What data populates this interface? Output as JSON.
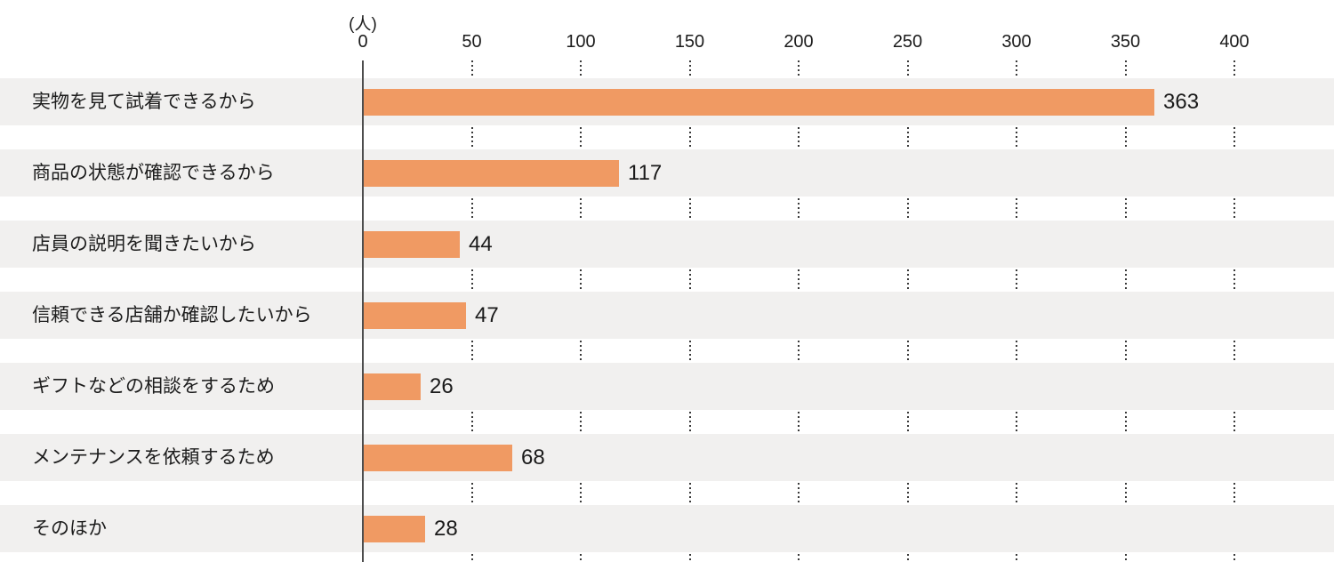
{
  "chart_data": {
    "type": "bar",
    "orientation": "horizontal",
    "title": "",
    "unit_label": "(人)",
    "categories": [
      "実物を見て試着できるから",
      "商品の状態が確認できるから",
      "店員の説明を聞きたいから",
      "信頼できる店舗か確認したいから",
      "ギフトなどの相談をするため",
      "メンテナンスを依頼するため",
      "そのほか"
    ],
    "values": [
      363,
      117,
      44,
      47,
      26,
      68,
      28
    ],
    "x_ticks": [
      "0",
      "50",
      "100",
      "150",
      "200",
      "250",
      "300",
      "350",
      "400"
    ],
    "x_tick_values": [
      0,
      50,
      100,
      150,
      200,
      250,
      300,
      350,
      400
    ],
    "xlim": [
      0,
      400
    ],
    "legend": "none",
    "grid": "dotted-vertical-in-row-gaps",
    "colors": {
      "bar": "#f09a63",
      "row_band": "#f1f0ef",
      "axis_line": "#4d4d4d",
      "grid_dots": "#3a3a3a",
      "text": "#1c1c1c",
      "background": "#ffffff"
    }
  }
}
